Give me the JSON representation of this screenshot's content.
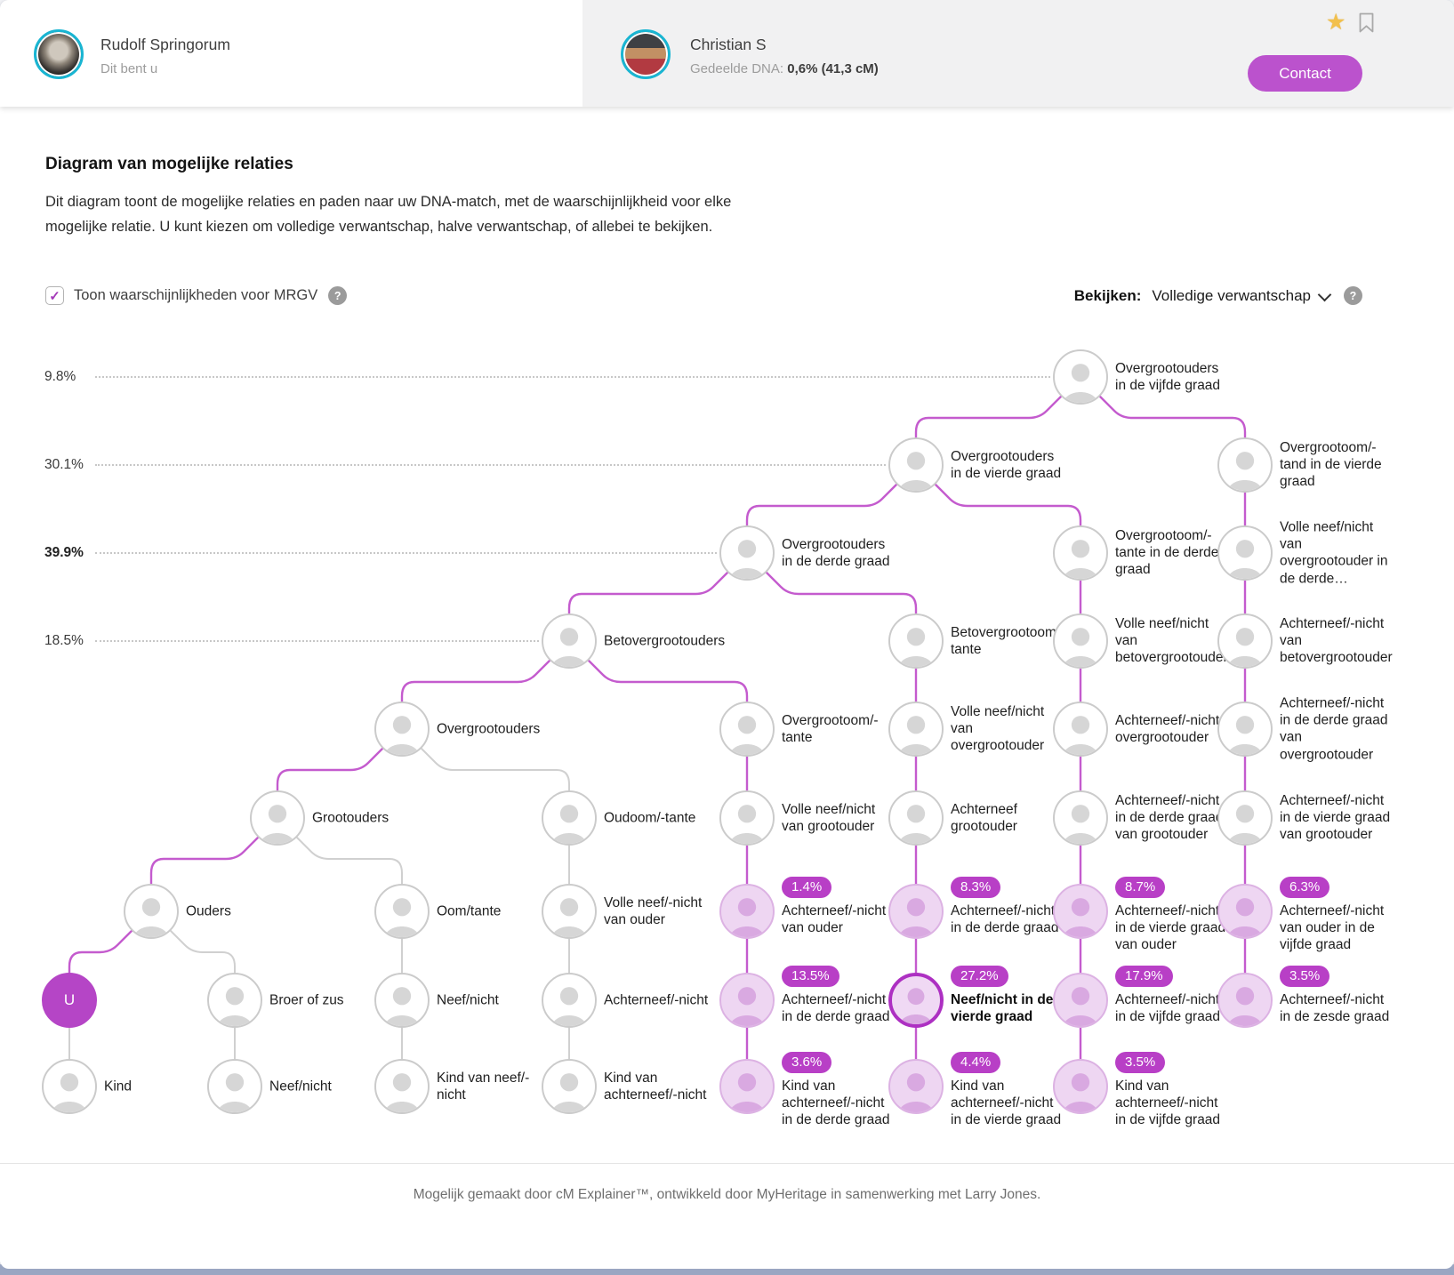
{
  "header": {
    "left_person": {
      "name": "Rudolf Springorum",
      "subtitle": "Dit bent u"
    },
    "right_person": {
      "name": "Christian S",
      "dna_label": "Gedeelde DNA:",
      "dna_value": "0,6% (41,3 cM)"
    },
    "contact_label": "Contact",
    "star_glyph": "★"
  },
  "intro": {
    "title": "Diagram van mogelijke relaties",
    "description": "Dit diagram toont de mogelijke relaties en paden naar uw DNA-match, met de waarschijnlijkheid voor elke mogelijke relatie. U kunt kiezen om volledige verwantschap, halve verwantschap, of allebei te bekijken.",
    "checkbox_label": "Toon waarschijnlijkheden voor MRGV",
    "checkbox_checked": true,
    "check_glyph": "✓",
    "help_glyph": "?"
  },
  "view_selector": {
    "label": "Bekijken:",
    "value": "Volledige verwantschap",
    "help_glyph": "?"
  },
  "footer": {
    "text": "Mogelijk gemaakt door cM Explainer™, ontwikkeld door MyHeritage in samenwerking met Larry Jones."
  },
  "colors": {
    "accent_purple": "#b545c6",
    "edge_purple": "#c45bce",
    "edge_gray": "#d0d0d0",
    "badge_purple": "#b83fc6",
    "highlight_ring": "#ad30c2",
    "avatar_ring_teal": "#19b5d2",
    "star_gold": "#f2c04c"
  },
  "diagram": {
    "axis": [
      {
        "label": "9.8%",
        "row": 0,
        "col": 8,
        "bold": false
      },
      {
        "label": "30.1%",
        "row": 1,
        "col": 7,
        "bold": false
      },
      {
        "label": "39.9%",
        "row": 2,
        "col": 6,
        "bold": true
      },
      {
        "label": "18.5%",
        "row": 3,
        "col": 5,
        "bold": false
      }
    ],
    "nodes": [
      {
        "id": "n1",
        "col": 8,
        "row": 0,
        "kind": "normal",
        "label": "Overgrootouders in de vijfde graad"
      },
      {
        "id": "n2",
        "col": 7,
        "row": 1,
        "kind": "normal",
        "label": "Overgrootouders in de vierde graad"
      },
      {
        "id": "n3",
        "col": 9,
        "row": 1,
        "kind": "normal",
        "label": "Overgrootoom/-tand in de vierde graad"
      },
      {
        "id": "n4",
        "col": 6,
        "row": 2,
        "kind": "normal",
        "label": "Overgrootouders in de derde graad"
      },
      {
        "id": "n5",
        "col": 8,
        "row": 2,
        "kind": "normal",
        "label": "Overgrootoom/-tante in de derde graad"
      },
      {
        "id": "n6",
        "col": 9,
        "row": 2,
        "kind": "normal",
        "label": "Volle neef/nicht van overgrootouder in de derde…"
      },
      {
        "id": "n7",
        "col": 5,
        "row": 3,
        "kind": "normal",
        "label": "Betovergrootouders"
      },
      {
        "id": "n8",
        "col": 7,
        "row": 3,
        "kind": "normal",
        "label": "Betovergrootoom/-tante"
      },
      {
        "id": "n9",
        "col": 8,
        "row": 3,
        "kind": "normal",
        "label": "Volle neef/nicht van betovergrootouder"
      },
      {
        "id": "n10",
        "col": 9,
        "row": 3,
        "kind": "normal",
        "label": "Achterneef/-nicht van betovergrootouder"
      },
      {
        "id": "n11",
        "col": 4,
        "row": 4,
        "kind": "normal",
        "label": "Overgrootouders"
      },
      {
        "id": "n12",
        "col": 6,
        "row": 4,
        "kind": "normal",
        "label": "Overgrootoom/-tante"
      },
      {
        "id": "n13",
        "col": 7,
        "row": 4,
        "kind": "normal",
        "label": "Volle neef/nicht van overgrootouder"
      },
      {
        "id": "n14",
        "col": 8,
        "row": 4,
        "kind": "normal",
        "label": "Achterneef/-nicht overgrootouder"
      },
      {
        "id": "n15",
        "col": 9,
        "row": 4,
        "kind": "normal",
        "label": "Achterneef/-nicht in de derde graad van overgrootouder"
      },
      {
        "id": "n16",
        "col": 3,
        "row": 5,
        "kind": "normal",
        "label": "Grootouders"
      },
      {
        "id": "n17",
        "col": 5,
        "row": 5,
        "kind": "normal",
        "label": "Oudoom/-tante"
      },
      {
        "id": "n18",
        "col": 6,
        "row": 5,
        "kind": "normal",
        "label": "Volle neef/nicht van grootouder"
      },
      {
        "id": "n19",
        "col": 7,
        "row": 5,
        "kind": "normal",
        "label": "Achterneef grootouder"
      },
      {
        "id": "n20",
        "col": 8,
        "row": 5,
        "kind": "normal",
        "label": "Achterneef/-nicht in de derde graad van grootouder"
      },
      {
        "id": "n21",
        "col": 9,
        "row": 5,
        "kind": "normal",
        "label": "Achterneef/-nicht in de vierde graad van grootouder"
      },
      {
        "id": "n22",
        "col": 1,
        "row": 6,
        "kind": "normal",
        "label": "Ouders"
      },
      {
        "id": "n23",
        "col": 4,
        "row": 6,
        "kind": "normal",
        "label": "Oom/tante"
      },
      {
        "id": "n24",
        "col": 5,
        "row": 6,
        "kind": "normal",
        "label": "Volle neef/-nicht van ouder"
      },
      {
        "id": "n25",
        "col": 6,
        "row": 6,
        "kind": "prob",
        "badge": "1.4%",
        "label": "Achterneef/-nicht van ouder"
      },
      {
        "id": "n26",
        "col": 7,
        "row": 6,
        "kind": "prob",
        "badge": "8.3%",
        "label": "Achterneef/-nicht in de derde graad"
      },
      {
        "id": "n27",
        "col": 8,
        "row": 6,
        "kind": "prob",
        "badge": "8.7%",
        "label": "Achterneef/-nicht in de vierde graad van ouder"
      },
      {
        "id": "n28",
        "col": 9,
        "row": 6,
        "kind": "prob",
        "badge": "6.3%",
        "label": "Achterneef/-nicht van ouder in de vijfde graad"
      },
      {
        "id": "n29",
        "col": 0,
        "row": 7,
        "kind": "self",
        "label": "U"
      },
      {
        "id": "n30",
        "col": 2,
        "row": 7,
        "kind": "normal",
        "label": "Broer of zus"
      },
      {
        "id": "n31",
        "col": 4,
        "row": 7,
        "kind": "normal",
        "label": "Neef/nicht"
      },
      {
        "id": "n32",
        "col": 5,
        "row": 7,
        "kind": "normal",
        "label": "Achterneef/-nicht"
      },
      {
        "id": "n33",
        "col": 6,
        "row": 7,
        "kind": "prob",
        "badge": "13.5%",
        "label": "Achterneef/-nicht in de derde graad"
      },
      {
        "id": "n34",
        "col": 7,
        "row": 7,
        "kind": "prob",
        "badge": "27.2%",
        "label": "Neef/nicht in de vierde graad",
        "highlight": true
      },
      {
        "id": "n35",
        "col": 8,
        "row": 7,
        "kind": "prob",
        "badge": "17.9%",
        "label": "Achterneef/-nicht in de vijfde graad"
      },
      {
        "id": "n36",
        "col": 9,
        "row": 7,
        "kind": "prob",
        "badge": "3.5%",
        "label": "Achterneef/-nicht in de zesde graad"
      },
      {
        "id": "n37",
        "col": 0,
        "row": 8,
        "kind": "normal",
        "label": "Kind"
      },
      {
        "id": "n38",
        "col": 2,
        "row": 8,
        "kind": "normal",
        "label": "Neef/nicht"
      },
      {
        "id": "n39",
        "col": 4,
        "row": 8,
        "kind": "normal",
        "label": "Kind van neef/-nicht"
      },
      {
        "id": "n40",
        "col": 5,
        "row": 8,
        "kind": "normal",
        "label": "Kind van achterneef/-nicht"
      },
      {
        "id": "n41",
        "col": 6,
        "row": 8,
        "kind": "prob",
        "badge": "3.6%",
        "label": "Kind van achterneef/-nicht in de derde graad"
      },
      {
        "id": "n42",
        "col": 7,
        "row": 8,
        "kind": "prob",
        "badge": "4.4%",
        "label": "Kind van achterneef/-nicht in de vierde graad"
      },
      {
        "id": "n43",
        "col": 8,
        "row": 8,
        "kind": "prob",
        "badge": "3.5%",
        "label": "Kind van achterneef/-nicht in de vijfde graad"
      }
    ],
    "edges": [
      [
        "n1",
        "n2",
        "p"
      ],
      [
        "n2",
        "n4",
        "p"
      ],
      [
        "n4",
        "n7",
        "p"
      ],
      [
        "n7",
        "n11",
        "p"
      ],
      [
        "n11",
        "n16",
        "p"
      ],
      [
        "n16",
        "n22",
        "p"
      ],
      [
        "n22",
        "n29",
        "p"
      ],
      [
        "n1",
        "n3",
        "p"
      ],
      [
        "n2",
        "n5",
        "p"
      ],
      [
        "n4",
        "n8",
        "p"
      ],
      [
        "n7",
        "n12",
        "p"
      ],
      [
        "n11",
        "n17",
        "g"
      ],
      [
        "n16",
        "n23",
        "g"
      ],
      [
        "n22",
        "n30",
        "g"
      ],
      [
        "n3",
        "n6",
        "p"
      ],
      [
        "n6",
        "n10",
        "p"
      ],
      [
        "n10",
        "n15",
        "p"
      ],
      [
        "n15",
        "n21",
        "p"
      ],
      [
        "n21",
        "n28",
        "p"
      ],
      [
        "n28",
        "n36",
        "p"
      ],
      [
        "n5",
        "n9",
        "p"
      ],
      [
        "n9",
        "n14",
        "p"
      ],
      [
        "n14",
        "n20",
        "p"
      ],
      [
        "n20",
        "n27",
        "p"
      ],
      [
        "n27",
        "n35",
        "p"
      ],
      [
        "n35",
        "n43",
        "p"
      ],
      [
        "n8",
        "n13",
        "p"
      ],
      [
        "n13",
        "n19",
        "p"
      ],
      [
        "n19",
        "n26",
        "p"
      ],
      [
        "n26",
        "n34",
        "p"
      ],
      [
        "n34",
        "n42",
        "p"
      ],
      [
        "n12",
        "n18",
        "p"
      ],
      [
        "n18",
        "n25",
        "p"
      ],
      [
        "n25",
        "n33",
        "p"
      ],
      [
        "n33",
        "n41",
        "p"
      ],
      [
        "n17",
        "n24",
        "g"
      ],
      [
        "n24",
        "n32",
        "g"
      ],
      [
        "n32",
        "n40",
        "g"
      ],
      [
        "n23",
        "n31",
        "g"
      ],
      [
        "n31",
        "n39",
        "g"
      ],
      [
        "n30",
        "n38",
        "g"
      ],
      [
        "n29",
        "n37",
        "g"
      ]
    ]
  }
}
